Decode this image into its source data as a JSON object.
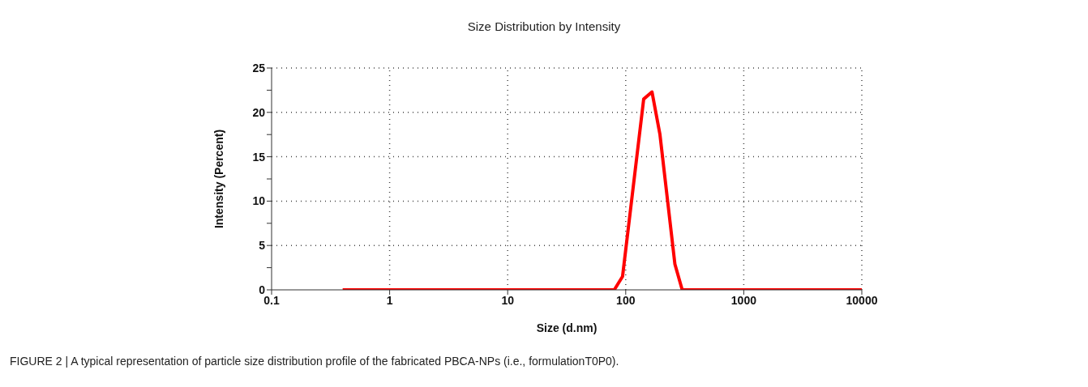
{
  "chart_data": {
    "type": "line",
    "title": "Size Distribution by Intensity",
    "xlabel": "Size (d.nm)",
    "ylabel": "Intensity (Percent)",
    "log": "x",
    "x": [
      0.4,
      80,
      94,
      142,
      167,
      195,
      261,
      301,
      10000
    ],
    "series": [
      {
        "color": "#ff0000",
        "values": [
          0,
          0,
          1.5,
          21.5,
          22.3,
          17.5,
          2.9,
          0,
          0
        ]
      }
    ],
    "xlim": [
      0.1,
      10000
    ],
    "xticks": [
      0.1,
      1,
      10,
      100,
      1000,
      10000
    ],
    "ylim": [
      0,
      25
    ],
    "yticks": [
      0,
      {
        "value": 2.5,
        "label": null
      },
      5,
      {
        "value": 7.5,
        "label": null
      },
      10,
      {
        "value": 12.5,
        "label": null
      },
      15,
      {
        "value": 17.5,
        "label": null
      },
      20,
      {
        "value": 22.5,
        "label": null
      },
      25
    ],
    "grid": true,
    "legend": false,
    "marker": "none",
    "line_style": "solid",
    "annotations": [
      "FIGURE 2 | A typical representation of particle size distribution profile of the fabricated PBCA-NPs (i.e., formulationT0P0)."
    ]
  }
}
